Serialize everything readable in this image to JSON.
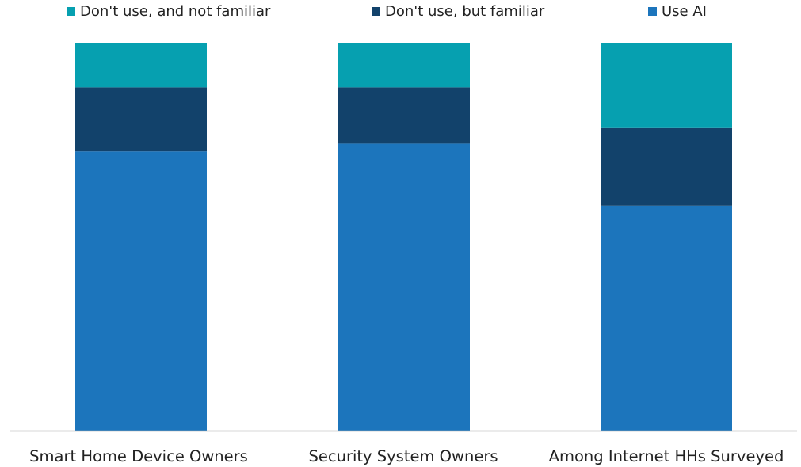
{
  "chart_data": {
    "type": "bar",
    "stacked": true,
    "categories": [
      "Smart Home Device Owners",
      "Security System Owners",
      "Among Internet HHs Surveyed"
    ],
    "series": [
      {
        "name": "Use AI",
        "values": [
          72,
          74,
          58
        ],
        "color": "#1c75bc"
      },
      {
        "name": "Don't use, but familiar",
        "values": [
          16.5,
          14.5,
          20
        ],
        "color": "#12426b"
      },
      {
        "name": "Don't use, and not familiar",
        "values": [
          11.5,
          11.5,
          22
        ],
        "color": "#06a0b0"
      }
    ],
    "legend_order": [
      "Don't use, and not familiar",
      "Don't use, but familiar",
      "Use AI"
    ],
    "legend_position": "top",
    "ylim": [
      0,
      100
    ],
    "grid": false,
    "axis_color": "#b0b0b0"
  }
}
